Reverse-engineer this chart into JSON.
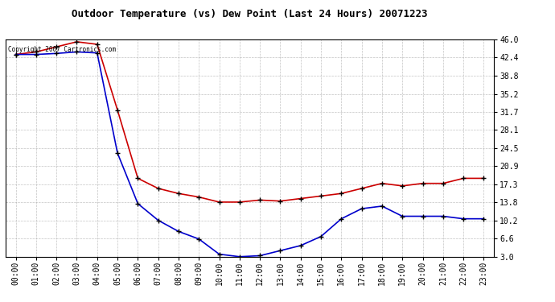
{
  "title": "Outdoor Temperature (vs) Dew Point (Last 24 Hours) 20071223",
  "copyright_text": "Copyright 2007 Cartronics.com",
  "x_labels": [
    "00:00",
    "01:00",
    "02:00",
    "03:00",
    "04:00",
    "05:00",
    "06:00",
    "07:00",
    "08:00",
    "09:00",
    "10:00",
    "11:00",
    "12:00",
    "13:00",
    "14:00",
    "15:00",
    "16:00",
    "17:00",
    "18:00",
    "19:00",
    "20:00",
    "21:00",
    "22:00",
    "23:00"
  ],
  "temp_data": [
    43.0,
    43.5,
    44.5,
    45.5,
    45.0,
    32.0,
    18.5,
    16.5,
    15.5,
    14.8,
    13.8,
    13.8,
    14.2,
    14.0,
    14.5,
    15.0,
    15.5,
    16.5,
    17.5,
    17.0,
    17.5,
    17.5,
    18.5,
    18.5
  ],
  "dew_data": [
    43.0,
    43.0,
    43.2,
    43.5,
    43.3,
    23.5,
    13.5,
    10.2,
    8.0,
    6.5,
    3.5,
    3.0,
    3.2,
    4.2,
    5.2,
    7.0,
    10.5,
    12.5,
    13.0,
    11.0,
    11.0,
    11.0,
    10.5,
    10.5
  ],
  "temp_color": "#cc0000",
  "dew_color": "#0000cc",
  "bg_color": "#ffffff",
  "grid_color": "#aaaaaa",
  "ylim_min": 3.0,
  "ylim_max": 46.0,
  "yticks": [
    3.0,
    6.6,
    10.2,
    13.8,
    17.3,
    20.9,
    24.5,
    28.1,
    31.7,
    35.2,
    38.8,
    42.4,
    46.0
  ],
  "marker_size": 5,
  "line_width": 1.2,
  "title_fontsize": 9,
  "tick_fontsize": 7
}
